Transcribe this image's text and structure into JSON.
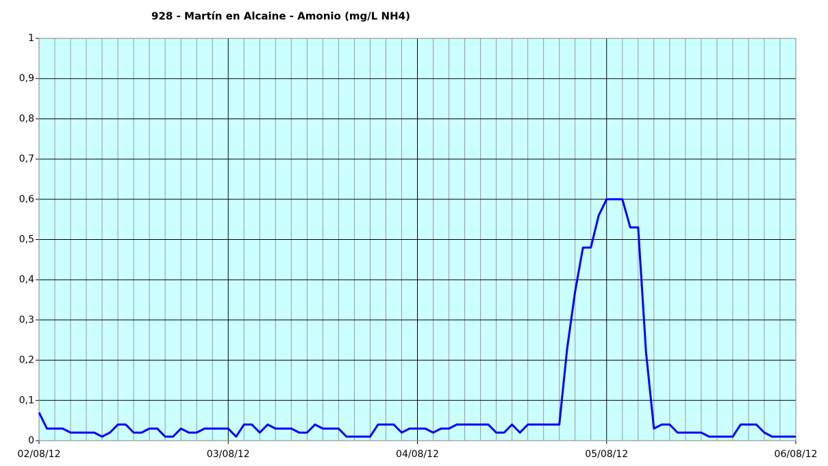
{
  "chart_data": {
    "type": "line",
    "title": "928 - Martín en Alcaine - Amonio (mg/L NH4)",
    "categories": [
      "02/08/12",
      null,
      null,
      null,
      null,
      null,
      null,
      null,
      null,
      null,
      null,
      null,
      null,
      null,
      null,
      null,
      null,
      null,
      null,
      null,
      null,
      null,
      null,
      null,
      "03/08/12",
      null,
      null,
      null,
      null,
      null,
      null,
      null,
      null,
      null,
      null,
      null,
      null,
      null,
      null,
      null,
      null,
      null,
      null,
      null,
      null,
      null,
      null,
      null,
      "04/08/12",
      null,
      null,
      null,
      null,
      null,
      null,
      null,
      null,
      null,
      null,
      null,
      null,
      null,
      null,
      null,
      null,
      null,
      null,
      null,
      null,
      null,
      null,
      null,
      "05/08/12",
      null,
      null,
      null,
      null,
      null,
      null,
      null,
      null,
      null,
      null,
      null,
      null,
      null,
      null,
      null,
      null,
      null,
      null,
      null,
      null,
      null,
      null,
      null,
      "06/08/12"
    ],
    "series": [
      {
        "name": "Amonio",
        "color": "#0000ff",
        "values": [
          0.07,
          0.03,
          0.03,
          0.03,
          0.02,
          0.02,
          0.02,
          0.02,
          0.01,
          0.02,
          0.04,
          0.04,
          0.02,
          0.02,
          0.03,
          0.03,
          0.01,
          0.01,
          0.03,
          0.02,
          0.02,
          0.03,
          0.03,
          0.03,
          0.03,
          0.01,
          0.04,
          0.04,
          0.02,
          0.04,
          0.03,
          0.03,
          0.03,
          0.02,
          0.02,
          0.04,
          0.03,
          0.03,
          0.03,
          0.01,
          0.01,
          0.01,
          0.01,
          0.04,
          0.04,
          0.04,
          0.02,
          0.03,
          0.03,
          0.03,
          0.02,
          0.03,
          0.03,
          0.04,
          0.04,
          0.04,
          0.04,
          0.04,
          0.02,
          0.02,
          0.04,
          0.02,
          0.04,
          0.04,
          0.04,
          0.04,
          0.04,
          0.23,
          0.37,
          0.48,
          0.48,
          0.56,
          0.6,
          0.6,
          0.6,
          0.53,
          0.53,
          0.22,
          0.03,
          0.04,
          0.04,
          0.02,
          0.02,
          0.02,
          0.02,
          0.01,
          0.01,
          0.01,
          0.01,
          0.04,
          0.04,
          0.04,
          0.02,
          0.01,
          0.01,
          0.01,
          0.01
        ]
      }
    ],
    "ylim": [
      0,
      1
    ],
    "yticks": [
      0,
      {
        "value": 0.1,
        "label": "0,1"
      },
      {
        "value": 0.2,
        "label": "0,2"
      },
      {
        "value": 0.3,
        "label": "0,3"
      },
      {
        "value": 0.4,
        "label": "0,4"
      },
      {
        "value": 0.5,
        "label": "0,5"
      },
      {
        "value": 0.6,
        "label": "0,6"
      },
      {
        "value": 0.7,
        "label": "0,7"
      },
      {
        "value": 0.8,
        "label": "0,8"
      },
      {
        "value": 0.9,
        "label": "0,9"
      },
      1
    ],
    "grid": true,
    "background": "#ccffff"
  }
}
